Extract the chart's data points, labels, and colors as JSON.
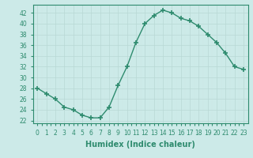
{
  "x": [
    0,
    1,
    2,
    3,
    4,
    5,
    6,
    7,
    8,
    9,
    10,
    11,
    12,
    13,
    14,
    15,
    16,
    17,
    18,
    19,
    20,
    21,
    22,
    23
  ],
  "y": [
    28,
    27,
    26,
    24.5,
    24,
    23,
    22.5,
    22.5,
    24.5,
    28.5,
    32,
    36.5,
    40,
    41.5,
    42.5,
    42,
    41,
    40.5,
    39.5,
    38,
    36.5,
    34.5,
    32,
    31.5
  ],
  "line_color": "#2e8b6e",
  "marker": "+",
  "markersize": 4,
  "markeredgewidth": 1.2,
  "linewidth": 1.0,
  "xlabel": "Humidex (Indice chaleur)",
  "xlabel_fontsize": 7,
  "xlim": [
    -0.5,
    23.5
  ],
  "ylim": [
    21.5,
    43.5
  ],
  "yticks": [
    22,
    24,
    26,
    28,
    30,
    32,
    34,
    36,
    38,
    40,
    42
  ],
  "xticks": [
    0,
    1,
    2,
    3,
    4,
    5,
    6,
    7,
    8,
    9,
    10,
    11,
    12,
    13,
    14,
    15,
    16,
    17,
    18,
    19,
    20,
    21,
    22,
    23
  ],
  "xtick_labels": [
    "0",
    "1",
    "2",
    "3",
    "4",
    "5",
    "6",
    "7",
    "8",
    "9",
    "10",
    "11",
    "12",
    "13",
    "14",
    "15",
    "16",
    "17",
    "18",
    "19",
    "20",
    "21",
    "22",
    "23"
  ],
  "bg_color": "#cceae8",
  "grid_color_major": "#b8d8d5",
  "grid_color_minor": "#d0e8e6",
  "tick_fontsize": 5.5,
  "spine_color": "#2e8b6e"
}
